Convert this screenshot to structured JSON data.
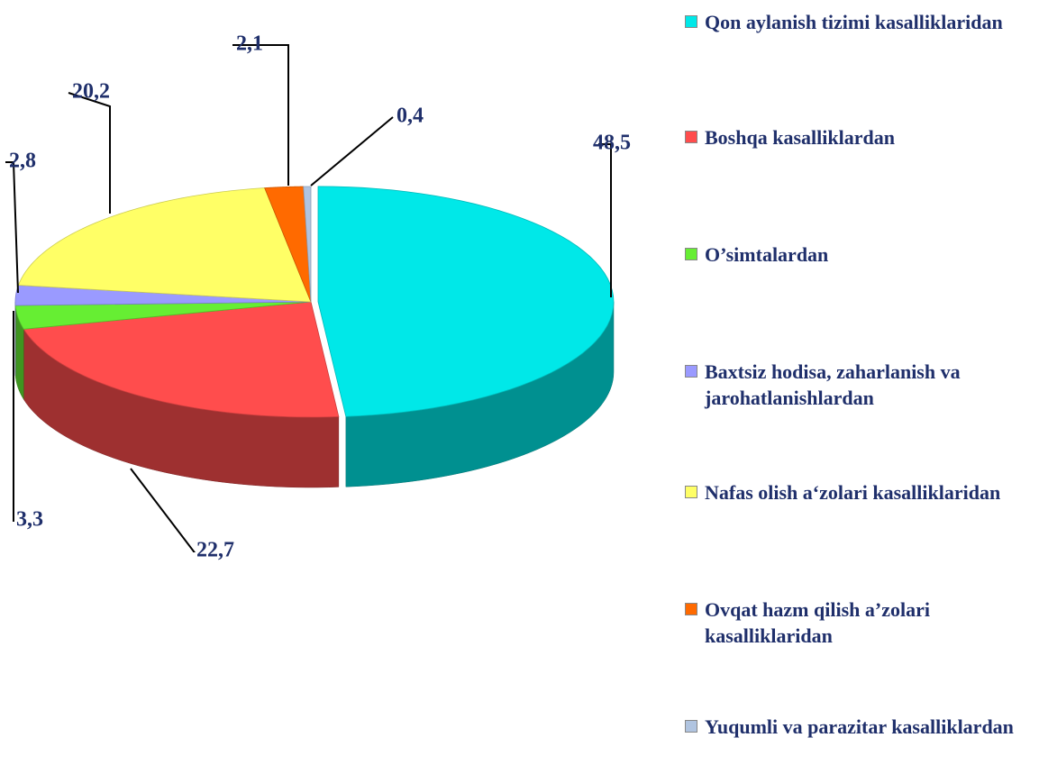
{
  "chart_data": {
    "type": "pie",
    "categories": [
      "Qon aylanish tizimi kasalliklaridan",
      "Boshqa kasalliklardan",
      "O’simtalardan",
      "Baxtsiz hodisa, zaharlanish va jarohatlanishlardan",
      "Nafas olish a‘zolari kasalliklaridan",
      "Ovqat hazm qilish a’zolari kasalliklaridan",
      "Yuqumli va parazitar kasalliklardan"
    ],
    "values": [
      48.5,
      22.7,
      3.3,
      2.8,
      20.2,
      2.1,
      0.4
    ],
    "value_labels": [
      "48,5",
      "22,7",
      "3,3",
      "2,8",
      "20,2",
      "2,1",
      "0,4"
    ],
    "colors": [
      "#00e8e8",
      "#ff4d4d",
      "#66ee33",
      "#9a9aff",
      "#ffff66",
      "#ff6a00",
      "#b0c4e0"
    ],
    "legend": "right"
  }
}
